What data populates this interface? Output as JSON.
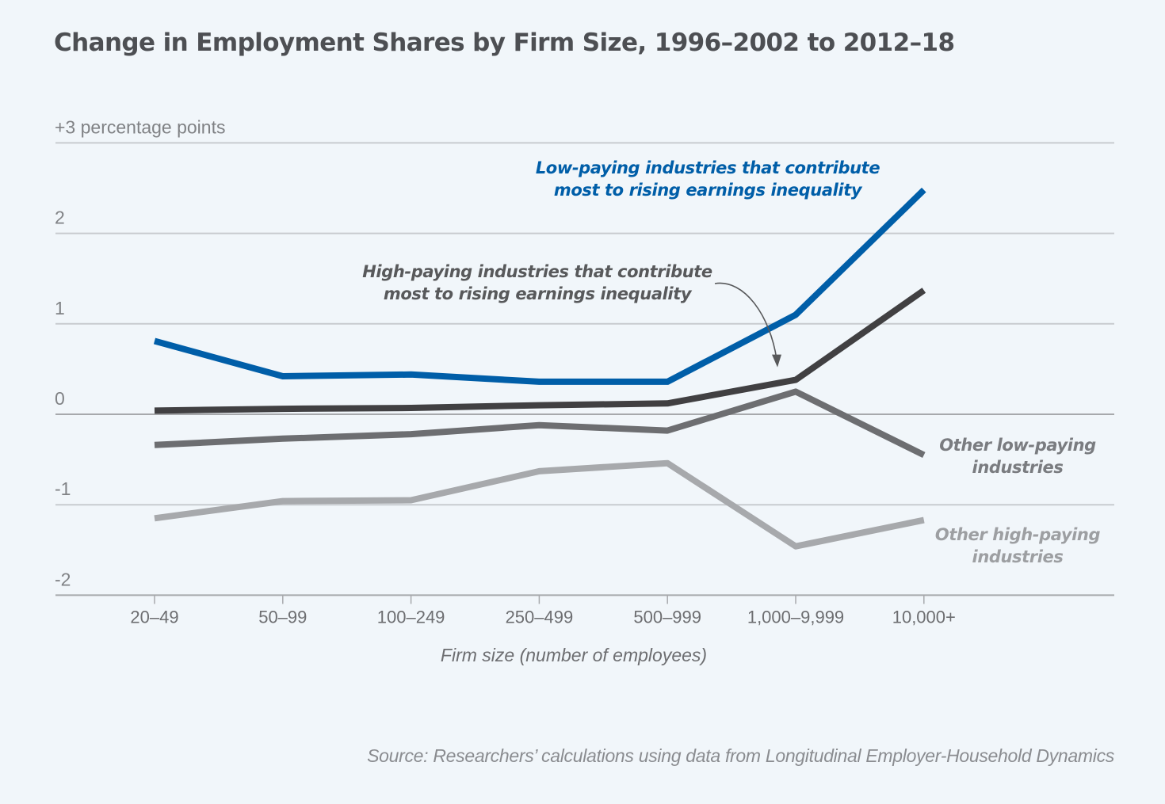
{
  "chart_data": {
    "type": "line",
    "title": "Change in Employment Shares by Firm Size, 1996–2002 to 2012–18",
    "xlabel": "Firm size (number of employees)",
    "ylabel": "percentage points",
    "categories": [
      "20–49",
      "50–99",
      "100–249",
      "250–499",
      "500–999",
      "1,000–9,999",
      "10,000+"
    ],
    "ylim": [
      -2,
      3
    ],
    "yticks": [
      {
        "value": 3,
        "label": "+3 percentage points"
      },
      {
        "value": 2,
        "label": "2"
      },
      {
        "value": 1,
        "label": "1"
      },
      {
        "value": 0,
        "label": "0"
      },
      {
        "value": -1,
        "label": "-1"
      },
      {
        "value": -2,
        "label": "-2"
      }
    ],
    "grid": true,
    "series": [
      {
        "name": "Other high-paying industries",
        "label_lines": [
          "Other high-paying",
          "industries"
        ],
        "color": "#a7a9ac",
        "label_color": "#9d9fa2",
        "values": [
          -1.15,
          -0.96,
          -0.95,
          -0.63,
          -0.54,
          -1.46,
          -1.17
        ]
      },
      {
        "name": "Other low-paying industries",
        "label_lines": [
          "Other low-paying",
          "industries"
        ],
        "color": "#6d6e71",
        "label_color": "#7a7c80",
        "values": [
          -0.34,
          -0.27,
          -0.22,
          -0.12,
          -0.18,
          0.25,
          -0.45
        ]
      },
      {
        "name": "High-paying industries that contribute most to rising earnings inequality",
        "label_lines": [
          "High-paying industries that contribute",
          "most to rising earnings inequality"
        ],
        "color": "#414042",
        "label_color": "#58595b",
        "values": [
          0.04,
          0.06,
          0.07,
          0.1,
          0.12,
          0.38,
          1.37
        ]
      },
      {
        "name": "Low-paying industries that contribute most to rising earnings inequality",
        "label_lines": [
          "Low-paying industries that contribute",
          "most to rising earnings inequality"
        ],
        "color": "#005ea8",
        "label_color": "#005ea8",
        "values": [
          0.81,
          0.42,
          0.44,
          0.36,
          0.36,
          1.1,
          2.48
        ]
      }
    ],
    "annotations": [
      {
        "text": "Arrow from high-paying label pointing to high-paying line at 1,000–9,999",
        "target_series": "High-paying industries that contribute most to rising earnings inequality",
        "target_category": "1,000–9,999"
      }
    ],
    "source": "Source: Researchers’ calculations using data from Longitudinal Employer-Household Dynamics"
  }
}
